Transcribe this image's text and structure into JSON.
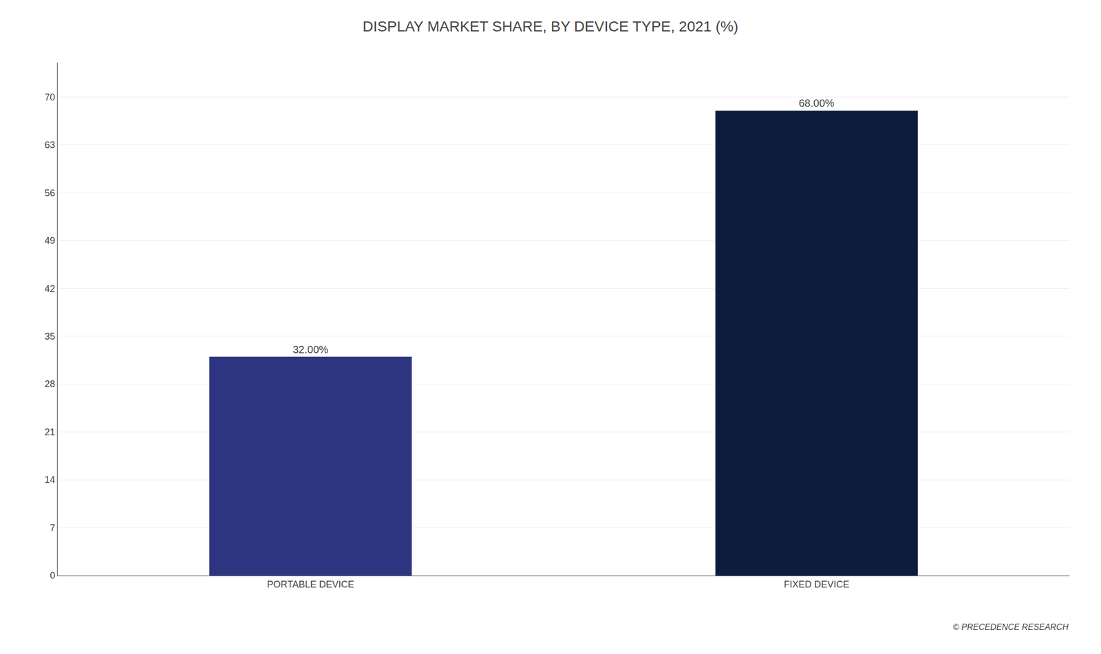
{
  "chart_data": {
    "type": "bar",
    "title": "DISPLAY MARKET SHARE, BY DEVICE TYPE, 2021 (%)",
    "categories": [
      "PORTABLE DEVICE",
      "FIXED DEVICE"
    ],
    "values": [
      32.0,
      68.0
    ],
    "value_labels": [
      "32.00%",
      "68.00%"
    ],
    "data_labels": true,
    "colors": [
      "#2e3580",
      "#0d1b3e"
    ],
    "ylim": [
      0,
      75
    ],
    "yticks": [
      0,
      7,
      14,
      21,
      28,
      35,
      42,
      49,
      56,
      63,
      70
    ],
    "grid": true,
    "annotations": [
      "© PRECEDENCE RESEARCH"
    ]
  }
}
